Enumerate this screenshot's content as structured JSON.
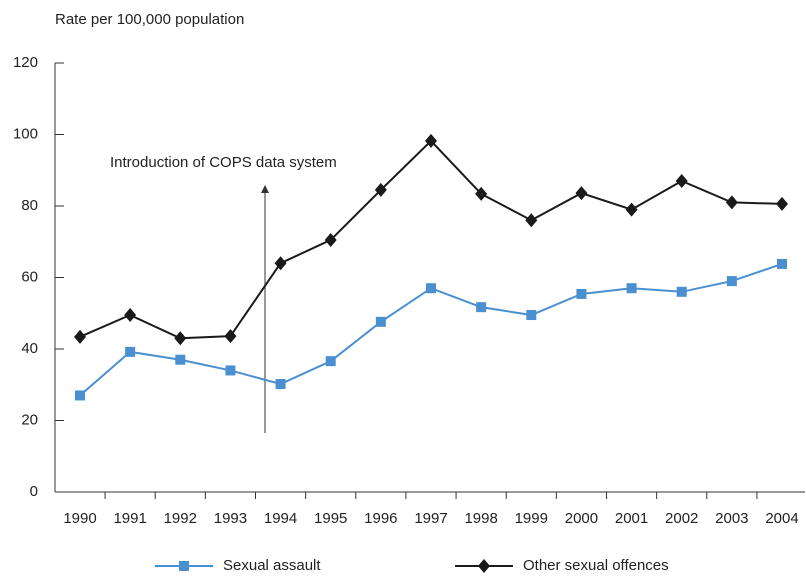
{
  "chart_data": {
    "type": "line",
    "y_label": "Rate per 100,000 population",
    "annotation": "Introduction of COPS data system",
    "categories": [
      "1990",
      "1991",
      "1992",
      "1993",
      "1994",
      "1995",
      "1996",
      "1997",
      "1998",
      "1999",
      "2000",
      "2001",
      "2002",
      "2003",
      "2004"
    ],
    "series": [
      {
        "name": "Sexual assault",
        "color": "#4a8fd0",
        "marker": "square",
        "values": [
          27,
          39.2,
          37,
          34,
          30.2,
          36.6,
          47.6,
          57,
          51.7,
          49.5,
          55.4,
          57,
          56,
          59,
          63.8
        ]
      },
      {
        "name": "Other sexual offences",
        "color": "#1a1a1a",
        "marker": "diamond",
        "values": [
          43.4,
          49.5,
          43,
          43.6,
          64,
          70.5,
          84.5,
          98.2,
          83.4,
          76,
          83.6,
          79,
          87,
          81,
          80.6
        ]
      }
    ],
    "ylim": [
      0,
      120
    ],
    "yticks": [
      0,
      20,
      40,
      60,
      80,
      100,
      120
    ],
    "grid": false,
    "legend": "bottom"
  }
}
